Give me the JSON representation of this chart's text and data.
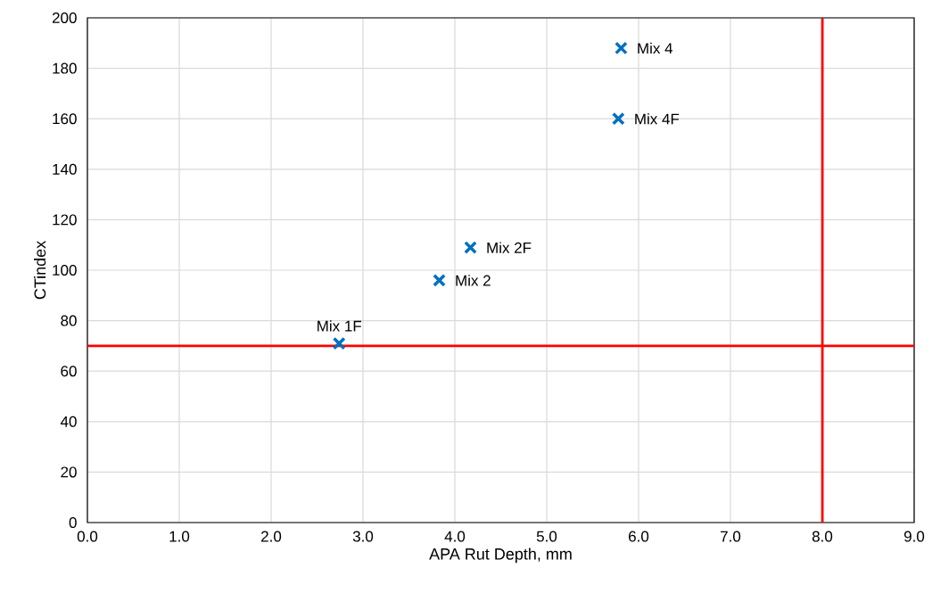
{
  "chart_data": {
    "type": "scatter",
    "xlabel": "APA Rut Depth, mm",
    "ylabel": "CTindex",
    "x": [
      2.74,
      3.83,
      4.17,
      5.78,
      5.81
    ],
    "series": [
      {
        "color": "#0070c0",
        "values": [
          71,
          96,
          109,
          160,
          188
        ]
      }
    ],
    "marker": "cross",
    "grid": true,
    "xlim": [
      0,
      9
    ],
    "ylim": [
      0,
      200
    ],
    "xticks": [
      {
        "value": 0,
        "label": "0.0"
      },
      {
        "value": 1,
        "label": "1.0"
      },
      {
        "value": 2,
        "label": "2.0"
      },
      {
        "value": 3,
        "label": "3.0"
      },
      {
        "value": 4,
        "label": "4.0"
      },
      {
        "value": 5,
        "label": "5.0"
      },
      {
        "value": 6,
        "label": "6.0"
      },
      {
        "value": 7,
        "label": "7.0"
      },
      {
        "value": 8,
        "label": "8.0"
      },
      {
        "value": 9,
        "label": "9.0"
      }
    ],
    "yticks": [
      0,
      20,
      40,
      60,
      80,
      100,
      120,
      140,
      160,
      180,
      200
    ],
    "ref_lines": [
      {
        "axis": "x",
        "value": 8,
        "color": "#ff0000"
      },
      {
        "axis": "y",
        "value": 70,
        "color": "#ff0000"
      }
    ],
    "annotations": [
      {
        "text": "Mix 1F",
        "x": 2.74,
        "y": 71
      },
      {
        "text": "Mix 2",
        "x": 3.83,
        "y": 96
      },
      {
        "text": "Mix 2F",
        "x": 4.17,
        "y": 109
      },
      {
        "text": "Mix 4F",
        "x": 5.78,
        "y": 160
      },
      {
        "text": "Mix 4",
        "x": 5.81,
        "y": 188
      }
    ]
  }
}
